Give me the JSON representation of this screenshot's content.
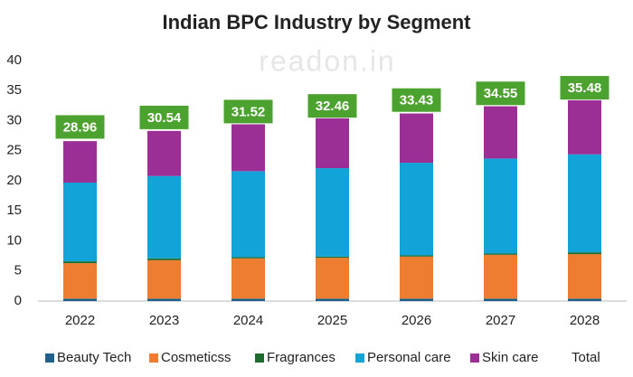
{
  "chart_data": {
    "type": "stacked-bar",
    "title": "Indian BPC Industry by Segment",
    "watermark": "readon.in",
    "categories": [
      "2022",
      "2023",
      "2024",
      "2025",
      "2026",
      "2027",
      "2028"
    ],
    "series": [
      {
        "name": "Beauty Tech",
        "color": "#1f5f8b",
        "values": [
          0.4,
          0.4,
          0.4,
          0.4,
          0.4,
          0.4,
          0.4
        ]
      },
      {
        "name": "Cosmeticss",
        "color": "#ed7d31",
        "values": [
          5.9,
          6.4,
          6.7,
          6.8,
          7.0,
          7.3,
          7.4
        ]
      },
      {
        "name": "Fragrances",
        "color": "#1e6b2e",
        "values": [
          0.3,
          0.3,
          0.2,
          0.2,
          0.2,
          0.2,
          0.3
        ]
      },
      {
        "name": "Personal care",
        "color": "#12a3d9",
        "values": [
          13.1,
          13.7,
          14.3,
          14.7,
          15.4,
          15.8,
          16.3
        ]
      },
      {
        "name": "Skin care",
        "color": "#9c2f96",
        "values": [
          6.9,
          7.5,
          7.8,
          8.3,
          8.2,
          8.7,
          9.0
        ]
      }
    ],
    "totals": {
      "name": "Total",
      "color": "#4ca22f",
      "values": [
        28.96,
        30.54,
        31.52,
        32.46,
        33.43,
        34.55,
        35.48
      ]
    },
    "ylim": [
      0,
      40
    ],
    "yticks": [
      0,
      5,
      10,
      15,
      20,
      25,
      30,
      35,
      40
    ],
    "grid": false,
    "legend": "bottom"
  }
}
